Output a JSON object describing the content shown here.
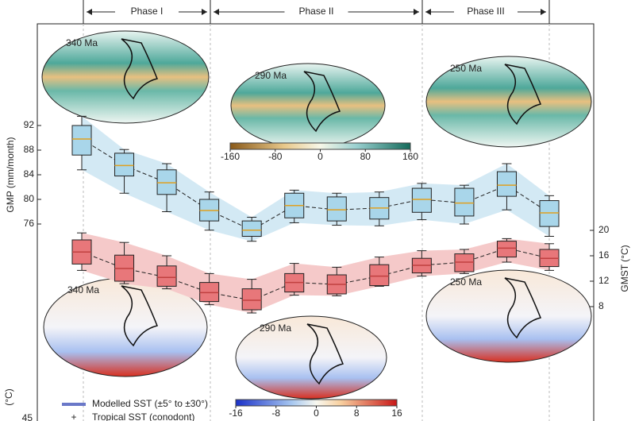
{
  "chart_data": {
    "type": "box",
    "phases": [
      "Phase I",
      "Phase II",
      "Phase III"
    ],
    "categories": [
      null,
      null,
      null,
      null,
      null,
      null,
      null,
      null,
      null,
      null,
      null,
      null
    ],
    "ylabel": "GMP (mm/month)",
    "ylim": [
      44,
      108
    ],
    "yticks": [
      76,
      80,
      84,
      88,
      92
    ],
    "y2label": "GMST (°C)",
    "y2lim": [
      -10,
      52
    ],
    "y2ticks": [
      8,
      12,
      16,
      20
    ],
    "series": [
      {
        "color": "#a9d6ea",
        "band_color": "#d3e9f4",
        "median_color": "#e0a020",
        "min": [
          84.8,
          81,
          78,
          75,
          73.2,
          76.2,
          75.8,
          75.7,
          76.7,
          76,
          78.3,
          74
        ],
        "q1": [
          87.2,
          83.8,
          80.8,
          76.5,
          74,
          77,
          76.5,
          76.8,
          77.9,
          77.3,
          80.5,
          75.6
        ],
        "median": [
          89.8,
          85.5,
          82.7,
          78.2,
          75,
          79,
          78.3,
          78.6,
          80,
          79.4,
          82.3,
          77.8
        ],
        "q3": [
          92,
          87.5,
          84.8,
          80,
          76.5,
          81,
          80.4,
          80.3,
          81.8,
          81.8,
          84.5,
          79.8
        ],
        "max": [
          93.5,
          88.1,
          85.8,
          81.2,
          77.1,
          81.5,
          81,
          81.2,
          82.6,
          82.3,
          85.8,
          80.6
        ]
      },
      {
        "axis": "y2",
        "color": "#e8777a",
        "band_color": "#f5c9c9",
        "median_color": "#c04040",
        "min": [
          13.7,
          11.6,
          10.8,
          8.3,
          7,
          9.8,
          9.7,
          11.2,
          12.8,
          13.2,
          15,
          13.7
        ],
        "q1": [
          14.7,
          12,
          11.2,
          8.8,
          7.5,
          10.3,
          10,
          11.3,
          13.3,
          13.5,
          15.8,
          14.3
        ],
        "median": [
          16.6,
          14,
          12.6,
          10.2,
          9,
          11.8,
          11.5,
          12.8,
          14.5,
          15,
          17.2,
          15.6
        ],
        "q3": [
          18.5,
          16.1,
          14.4,
          11.8,
          10.8,
          13.2,
          13,
          14.6,
          15.6,
          16.3,
          18.3,
          17
        ],
        "max": [
          19.6,
          18.1,
          16,
          13.2,
          12.3,
          14.8,
          14.2,
          15.8,
          16.8,
          17,
          18.7,
          17.9
        ]
      }
    ],
    "maps": [
      "340 Ma",
      "290 Ma",
      "250 Ma",
      "340 Ma",
      "290 Ma",
      "250 Ma"
    ],
    "colorbars": [
      {
        "ticks": [
          -160,
          -80,
          0,
          80,
          160
        ]
      },
      {
        "ticks": [
          -16,
          -8,
          0,
          8,
          16
        ]
      }
    ],
    "legend": [
      {
        "label": "Modelled SST (±5° to ±30°)",
        "color": "#6a78c8"
      },
      {
        "label": "Tropical SST (conodont)",
        "color": "#333333"
      }
    ],
    "lower_axis": {
      "label": "(°C)",
      "ticks": [
        45
      ]
    }
  }
}
